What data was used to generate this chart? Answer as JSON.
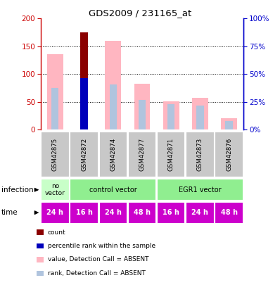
{
  "title": "GDS2009 / 231165_at",
  "samples": [
    "GSM42875",
    "GSM42872",
    "GSM42874",
    "GSM42877",
    "GSM42871",
    "GSM42873",
    "GSM42876"
  ],
  "value_absent": [
    136,
    0,
    160,
    83,
    51,
    57,
    20
  ],
  "rank_absent": [
    75,
    0,
    81,
    53,
    46,
    43,
    15
  ],
  "count_present": [
    0,
    175,
    0,
    0,
    0,
    0,
    0
  ],
  "rank_present": [
    0,
    93,
    0,
    0,
    0,
    0,
    0
  ],
  "ylim": [
    0,
    200
  ],
  "yticks_left": [
    0,
    50,
    100,
    150,
    200
  ],
  "time_labels": [
    "24 h",
    "16 h",
    "24 h",
    "48 h",
    "16 h",
    "24 h",
    "48 h"
  ],
  "time_color": "#cc00cc",
  "color_count": "#8b0000",
  "color_rank_present": "#0000bb",
  "color_value_absent": "#ffb6c1",
  "color_rank_absent": "#b0c4de",
  "axis_left_color": "#cc0000",
  "axis_right_color": "#0000cc",
  "gray_bg": "#c8c8c8",
  "novector_color": "#c8ffc8",
  "control_color": "#90ee90",
  "egr1_color": "#90ee90"
}
